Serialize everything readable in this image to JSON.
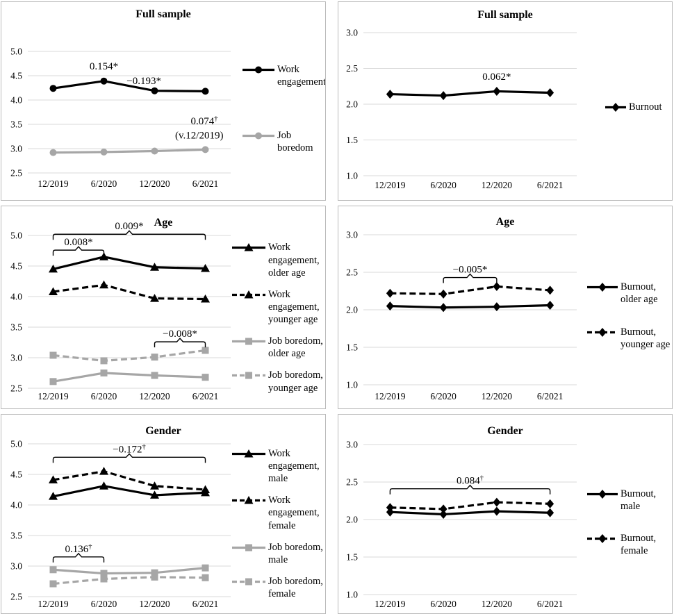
{
  "figure": {
    "description": "Six-panel longitudinal line chart figure: mean levels of work engagement, job boredom and burnout across four measurement waves, for the full sample and split by age and gender.",
    "waves": [
      "12/2019",
      "6/2020",
      "12/2020",
      "6/2021"
    ]
  },
  "colors": {
    "black": "#000000",
    "gray": "#a6a6a6",
    "gridline": "#d9d9d9",
    "border": "#b9b9b9",
    "text": "#000000"
  },
  "chart_data": [
    {
      "panel": "top-left",
      "type": "line",
      "title": "Full sample",
      "ylim": [
        2.5,
        5.0
      ],
      "ytick_step": 0.5,
      "grid": true,
      "legend_position": "right",
      "categories": [
        "12/2019",
        "6/2020",
        "12/2020",
        "6/2021"
      ],
      "series": [
        {
          "name": "Work engagement",
          "values": [
            4.24,
            4.39,
            4.19,
            4.18
          ],
          "color": "black",
          "dash": false,
          "marker": "circle"
        },
        {
          "name": "Job boredom",
          "values": [
            2.92,
            2.93,
            2.95,
            2.98
          ],
          "color": "gray",
          "dash": false,
          "marker": "circle"
        }
      ],
      "annotations": [
        {
          "text": "0.154*",
          "sup": "",
          "xi": 1.0,
          "y": 4.63
        },
        {
          "text": "−0.193*",
          "sup": "",
          "xi": 1.79,
          "y": 4.33
        },
        {
          "text": "0.074",
          "sup": "†",
          "xi": 2.98,
          "y": 3.5
        },
        {
          "text": "(v.12/2019)",
          "sup": "",
          "xi": 2.88,
          "y": 3.21
        }
      ],
      "brackets": []
    },
    {
      "panel": "top-right",
      "type": "line",
      "title": "Full sample",
      "ylim": [
        1.0,
        3.0
      ],
      "ytick_step": 0.5,
      "grid": true,
      "legend_position": "right",
      "categories": [
        "12/2019",
        "6/2020",
        "12/2020",
        "6/2021"
      ],
      "series": [
        {
          "name": "Burnout",
          "values": [
            2.14,
            2.12,
            2.18,
            2.16
          ],
          "color": "black",
          "dash": false,
          "marker": "diamond"
        }
      ],
      "annotations": [
        {
          "text": "0.062*",
          "sup": "",
          "xi": 2.0,
          "y": 2.34
        }
      ],
      "brackets": []
    },
    {
      "panel": "middle-left",
      "type": "line",
      "title": "Age",
      "ylim": [
        2.5,
        5.0
      ],
      "ytick_step": 0.5,
      "grid": true,
      "legend_position": "right",
      "categories": [
        "12/2019",
        "6/2020",
        "12/2020",
        "6/2021"
      ],
      "series": [
        {
          "name": "Work engagement, older age",
          "values": [
            4.45,
            4.65,
            4.48,
            4.46
          ],
          "color": "black",
          "dash": false,
          "marker": "triangle"
        },
        {
          "name": "Work engagement, younger age",
          "values": [
            4.08,
            4.19,
            3.97,
            3.96
          ],
          "color": "black",
          "dash": true,
          "marker": "triangle"
        },
        {
          "name": "Job boredom, older age",
          "values": [
            2.61,
            2.75,
            2.71,
            2.68
          ],
          "color": "gray",
          "dash": false,
          "marker": "square"
        },
        {
          "name": "Job boredom, younger age",
          "values": [
            3.04,
            2.95,
            3.01,
            3.12
          ],
          "color": "gray",
          "dash": true,
          "marker": "square"
        }
      ],
      "annotations": [],
      "brackets": [
        {
          "label": "0.009*",
          "sup": "",
          "x0": 0,
          "x1": 3,
          "y": 5.02
        },
        {
          "label": "0.008*",
          "sup": "",
          "x0": 0,
          "x1": 1,
          "y": 4.76
        },
        {
          "label": "−0.008*",
          "sup": "",
          "x0": 2,
          "x1": 3,
          "y": 3.26
        }
      ]
    },
    {
      "panel": "middle-right",
      "type": "line",
      "title": "Age",
      "ylim": [
        1.0,
        3.0
      ],
      "ytick_step": 0.5,
      "grid": true,
      "legend_position": "right",
      "categories": [
        "12/2019",
        "6/2020",
        "12/2020",
        "6/2021"
      ],
      "series": [
        {
          "name": "Burnout, older age",
          "values": [
            2.05,
            2.03,
            2.04,
            2.06
          ],
          "color": "black",
          "dash": false,
          "marker": "diamond"
        },
        {
          "name": "Burnout, younger age",
          "values": [
            2.22,
            2.21,
            2.31,
            2.26
          ],
          "color": "black",
          "dash": true,
          "marker": "diamond"
        }
      ],
      "annotations": [],
      "brackets": [
        {
          "label": "−0.005*",
          "sup": "",
          "x0": 1,
          "x1": 2,
          "y": 2.43
        }
      ]
    },
    {
      "panel": "bottom-left",
      "type": "line",
      "title": "Gender",
      "ylim": [
        2.5,
        5.0
      ],
      "ytick_step": 0.5,
      "grid": true,
      "legend_position": "right",
      "categories": [
        "12/2019",
        "6/2020",
        "12/2020",
        "6/2021"
      ],
      "series": [
        {
          "name": "Work engagement, male",
          "values": [
            4.14,
            4.31,
            4.16,
            4.2
          ],
          "color": "black",
          "dash": false,
          "marker": "triangle"
        },
        {
          "name": "Work engagement, female",
          "values": [
            4.41,
            4.55,
            4.31,
            4.25
          ],
          "color": "black",
          "dash": true,
          "marker": "triangle"
        },
        {
          "name": "Job boredom, male",
          "values": [
            2.94,
            2.88,
            2.89,
            2.97
          ],
          "color": "gray",
          "dash": false,
          "marker": "square"
        },
        {
          "name": "Job boredom, female",
          "values": [
            2.71,
            2.79,
            2.82,
            2.81
          ],
          "color": "gray",
          "dash": true,
          "marker": "square"
        }
      ],
      "annotations": [],
      "brackets": [
        {
          "label": "−0.172",
          "sup": "†",
          "x0": 0,
          "x1": 3,
          "y": 4.78
        },
        {
          "label": "0.136",
          "sup": "†",
          "x0": 0,
          "x1": 1,
          "y": 3.15
        }
      ]
    },
    {
      "panel": "bottom-right",
      "type": "line",
      "title": "Gender",
      "ylim": [
        1.0,
        3.0
      ],
      "ytick_step": 0.5,
      "grid": true,
      "legend_position": "right",
      "categories": [
        "12/2019",
        "6/2020",
        "12/2020",
        "6/2021"
      ],
      "series": [
        {
          "name": "Burnout, male",
          "values": [
            2.1,
            2.07,
            2.11,
            2.09
          ],
          "color": "black",
          "dash": false,
          "marker": "diamond"
        },
        {
          "name": "Burnout, female",
          "values": [
            2.16,
            2.14,
            2.23,
            2.21
          ],
          "color": "black",
          "dash": true,
          "marker": "diamond"
        }
      ],
      "annotations": [],
      "brackets": [
        {
          "label": "0.084",
          "sup": "†",
          "x0": 0,
          "x1": 3,
          "y": 2.41
        }
      ]
    }
  ]
}
